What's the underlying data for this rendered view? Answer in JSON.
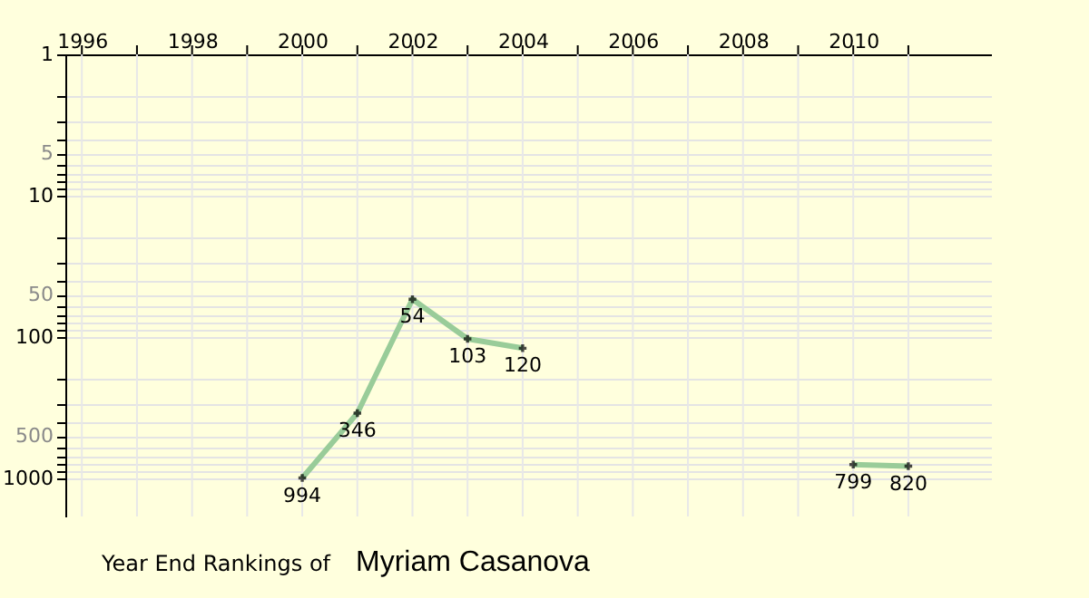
{
  "chart_data": {
    "type": "line",
    "title": "Year End Rankings of",
    "subtitle": "Myriam Casanova",
    "x": [
      2000,
      2001,
      2002,
      2003,
      2004,
      2005,
      2006,
      2007,
      2008,
      2009,
      2010,
      2011
    ],
    "series": [
      {
        "color": "#99cc99",
        "values": [
          994,
          346,
          54,
          103,
          120,
          null,
          null,
          null,
          null,
          null,
          799,
          820
        ]
      }
    ],
    "xlim": [
      1995.7,
      2012.5
    ],
    "xticks": [
      1996,
      {
        "value": 1997,
        "label": null
      },
      1998,
      {
        "value": 1999,
        "label": null
      },
      2000,
      {
        "value": 2001,
        "label": null
      },
      2002,
      {
        "value": 2003,
        "label": null
      },
      2004,
      {
        "value": 2005,
        "label": null
      },
      2006,
      {
        "value": 2007,
        "label": null
      },
      2008,
      {
        "value": 2009,
        "label": null
      },
      2010,
      {
        "value": 2011,
        "label": null
      }
    ],
    "ylim": [
      1860,
      1
    ],
    "yticks": [
      1,
      {
        "value": 2,
        "label": null
      },
      {
        "value": 3,
        "label": null
      },
      {
        "value": 4,
        "label": null
      },
      5,
      {
        "value": 6,
        "label": null
      },
      {
        "value": 7,
        "label": null
      },
      {
        "value": 8,
        "label": null
      },
      {
        "value": 9,
        "label": null
      },
      10,
      {
        "value": 20,
        "label": null
      },
      {
        "value": 30,
        "label": null
      },
      {
        "value": 40,
        "label": null
      },
      50,
      {
        "value": 60,
        "label": null
      },
      {
        "value": 70,
        "label": null
      },
      {
        "value": 80,
        "label": null
      },
      {
        "value": 90,
        "label": null
      },
      100,
      {
        "value": 200,
        "label": null
      },
      {
        "value": 300,
        "label": null
      },
      {
        "value": 400,
        "label": null
      },
      500,
      {
        "value": 600,
        "label": null
      },
      {
        "value": 700,
        "label": null
      },
      {
        "value": 800,
        "label": null
      },
      {
        "value": 900,
        "label": null
      },
      1000
    ],
    "log": "y",
    "grid": true,
    "marker": "cross",
    "line_style": "solid",
    "data_labels": true
  }
}
